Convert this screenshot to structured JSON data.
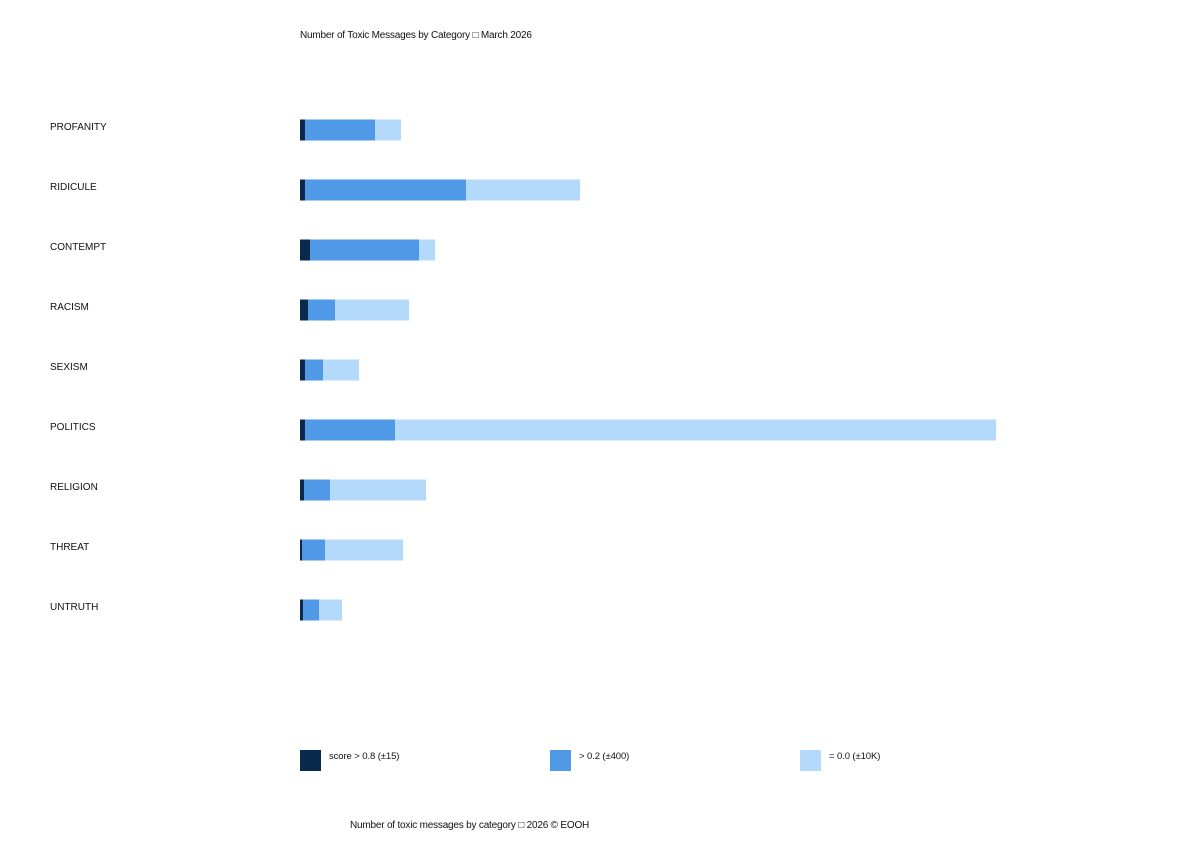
{
  "chart_data": {
    "type": "bar",
    "orientation": "horizontal",
    "stacked": true,
    "title": "Number of Toxic Messages by Category □ March 2026",
    "categories": [
      "PROFANITY",
      "RIDICULE",
      "CONTEMPT",
      "RACISM",
      "SEXISM",
      "POLITICS",
      "RELIGION",
      "THREAT",
      "UNTRUTH"
    ],
    "series": [
      {
        "name": "score > 0.8 (±15)",
        "color": "#0a2a4d",
        "values": [
          5,
          5,
          10,
          8,
          5,
          5,
          4,
          2,
          3
        ]
      },
      {
        "name": "> 0.2 (±400)",
        "color": "#4f99e6",
        "values": [
          70,
          161,
          109,
          27,
          18,
          90,
          26,
          23,
          16
        ]
      },
      {
        "name": "= 0.0 (±10K)",
        "color": "#b3d9fb",
        "values": [
          26,
          114,
          16,
          74,
          36,
          601,
          96,
          78,
          23
        ]
      }
    ],
    "grid": false,
    "legend": "bottom",
    "footer": "Number of toxic messages by category □ 2026 © EOOH"
  }
}
